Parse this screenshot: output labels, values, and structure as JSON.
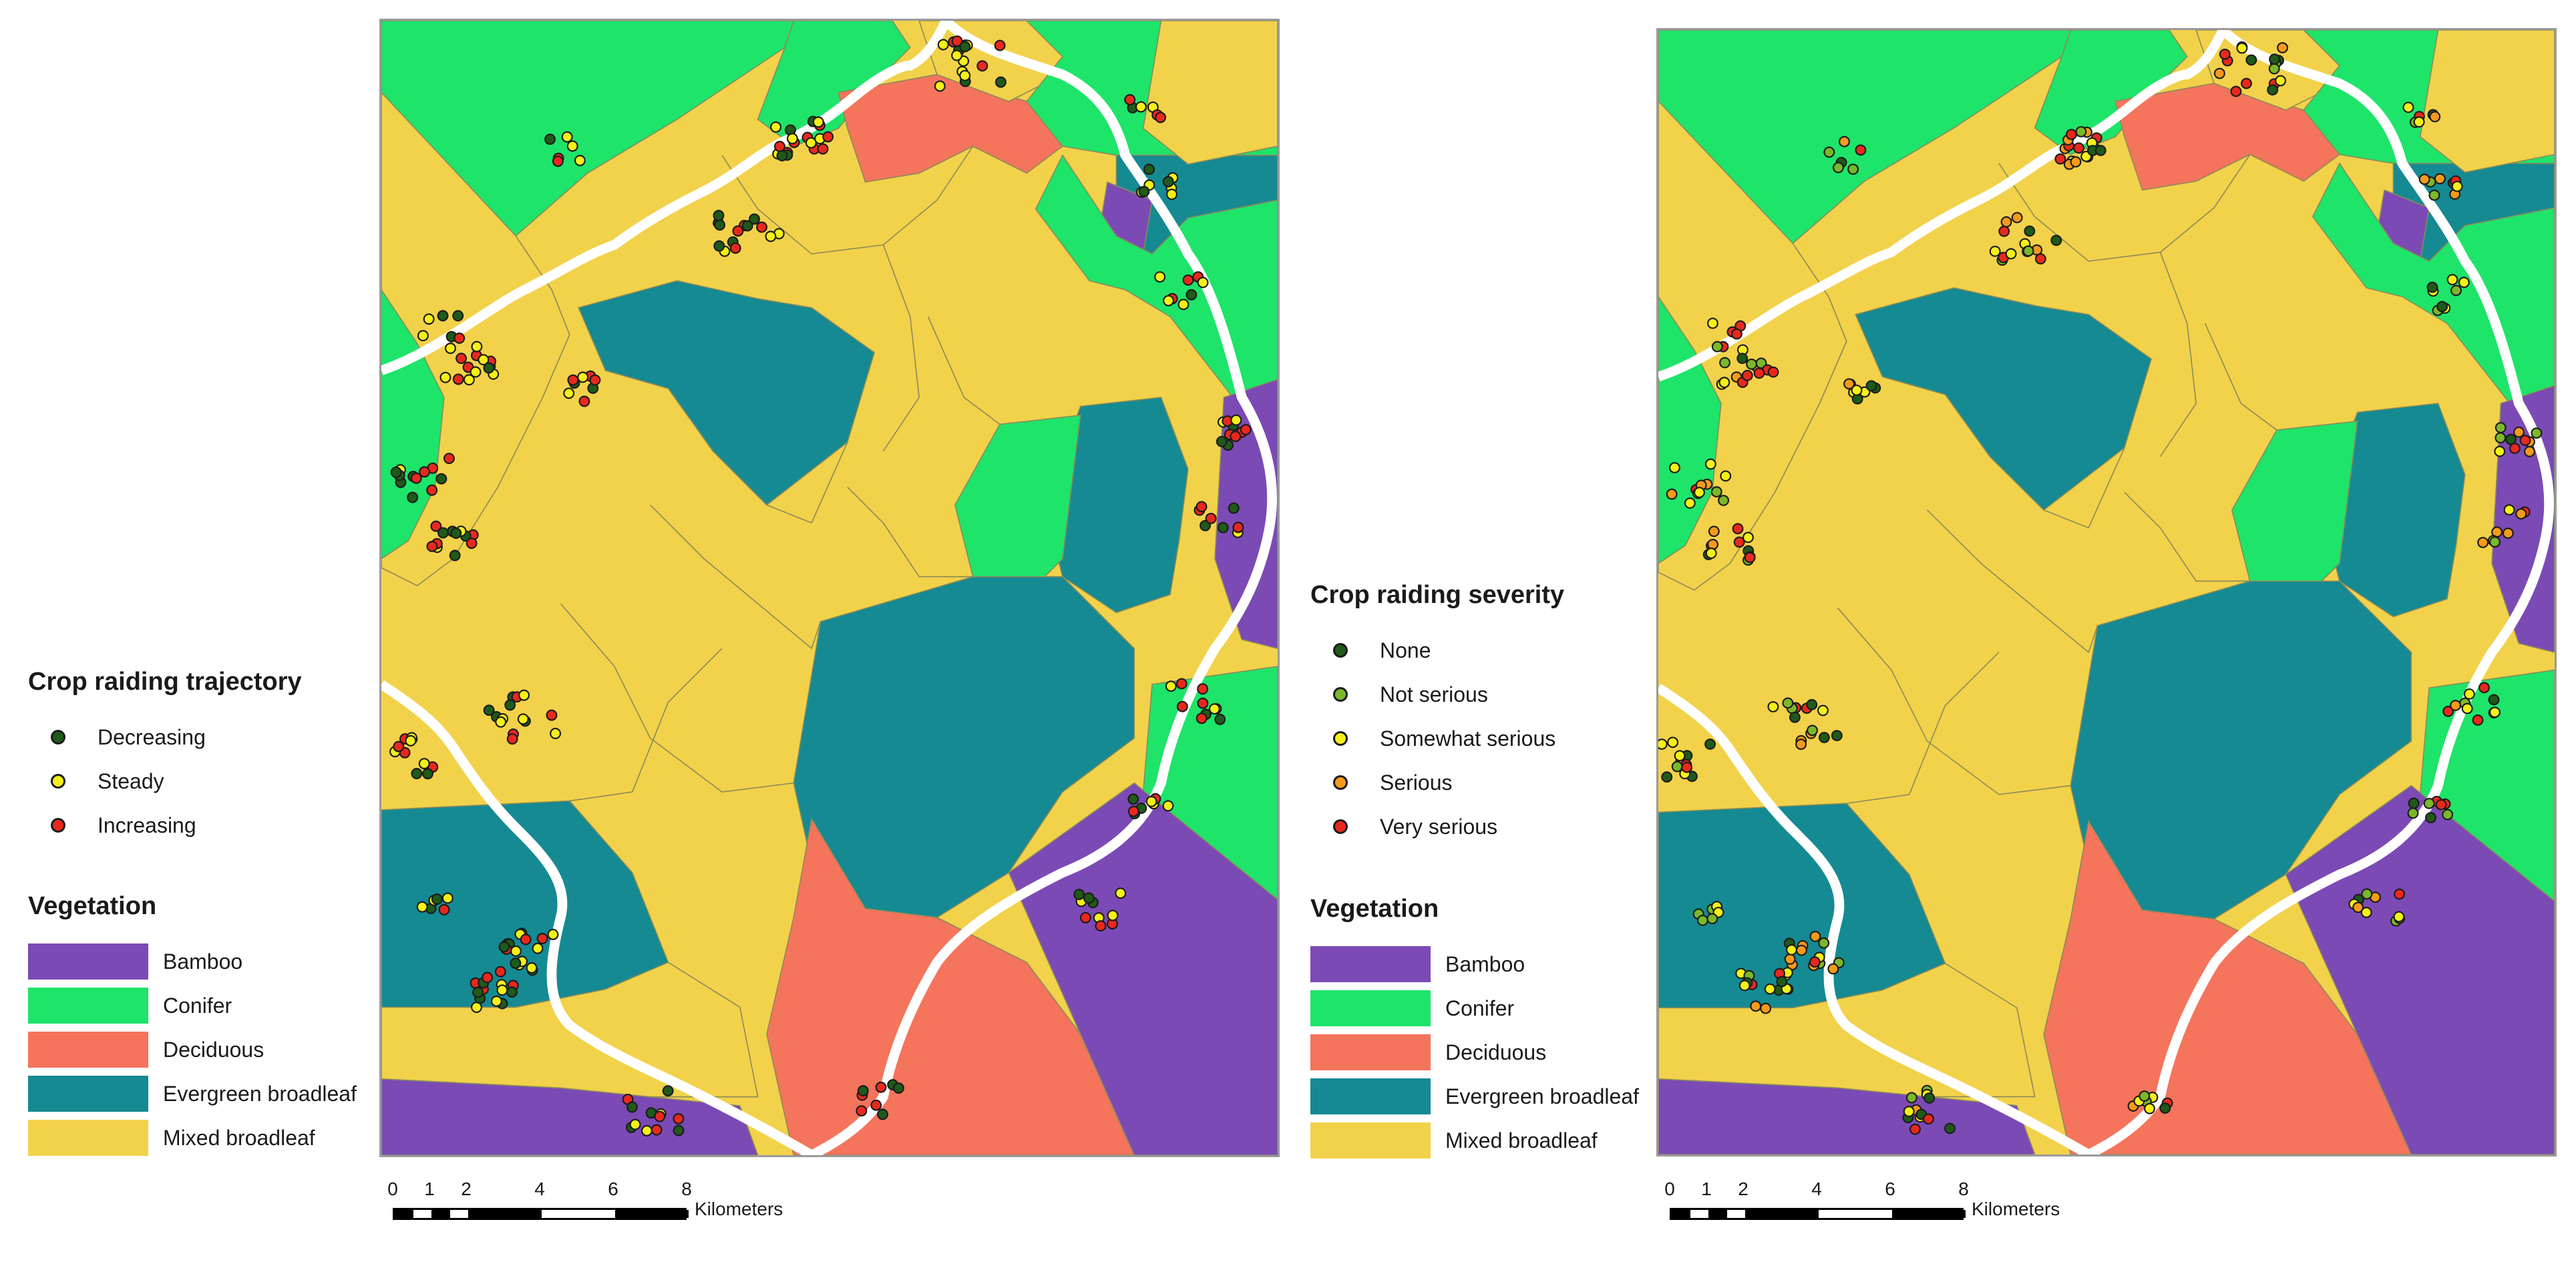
{
  "legend_trajectory": {
    "title": "Crop raiding trajectory",
    "items": [
      {
        "label": "Decreasing",
        "color": "#1f5a1a"
      },
      {
        "label": "Steady",
        "color": "#f5f018"
      },
      {
        "label": "Increasing",
        "color": "#e8281e"
      }
    ]
  },
  "legend_severity": {
    "title": "Crop raiding severity",
    "items": [
      {
        "label": "None",
        "color": "#1f5a1a"
      },
      {
        "label": "Not serious",
        "color": "#7ab82a"
      },
      {
        "label": "Somewhat serious",
        "color": "#f5f018"
      },
      {
        "label": "Serious",
        "color": "#f59a1c"
      },
      {
        "label": "Very serious",
        "color": "#e8281e"
      }
    ]
  },
  "vegetation": {
    "title": "Vegetation",
    "items": [
      {
        "label": "Bamboo",
        "color": "#7b4ab5"
      },
      {
        "label": "Conifer",
        "color": "#1ee46a"
      },
      {
        "label": "Deciduous",
        "color": "#f5745c"
      },
      {
        "label": "Evergreen broadleaf",
        "color": "#158a92"
      },
      {
        "label": "Mixed broadleaf",
        "color": "#f2d24a"
      }
    ]
  },
  "scale_bar": {
    "tick_labels": [
      "0",
      "1",
      "2",
      "4",
      "6",
      "8"
    ],
    "unit": "Kilometers"
  },
  "maps": [
    {
      "panel": "left",
      "point_legend": "Crop raiding trajectory"
    },
    {
      "panel": "right",
      "point_legend": "Crop raiding severity"
    }
  ]
}
